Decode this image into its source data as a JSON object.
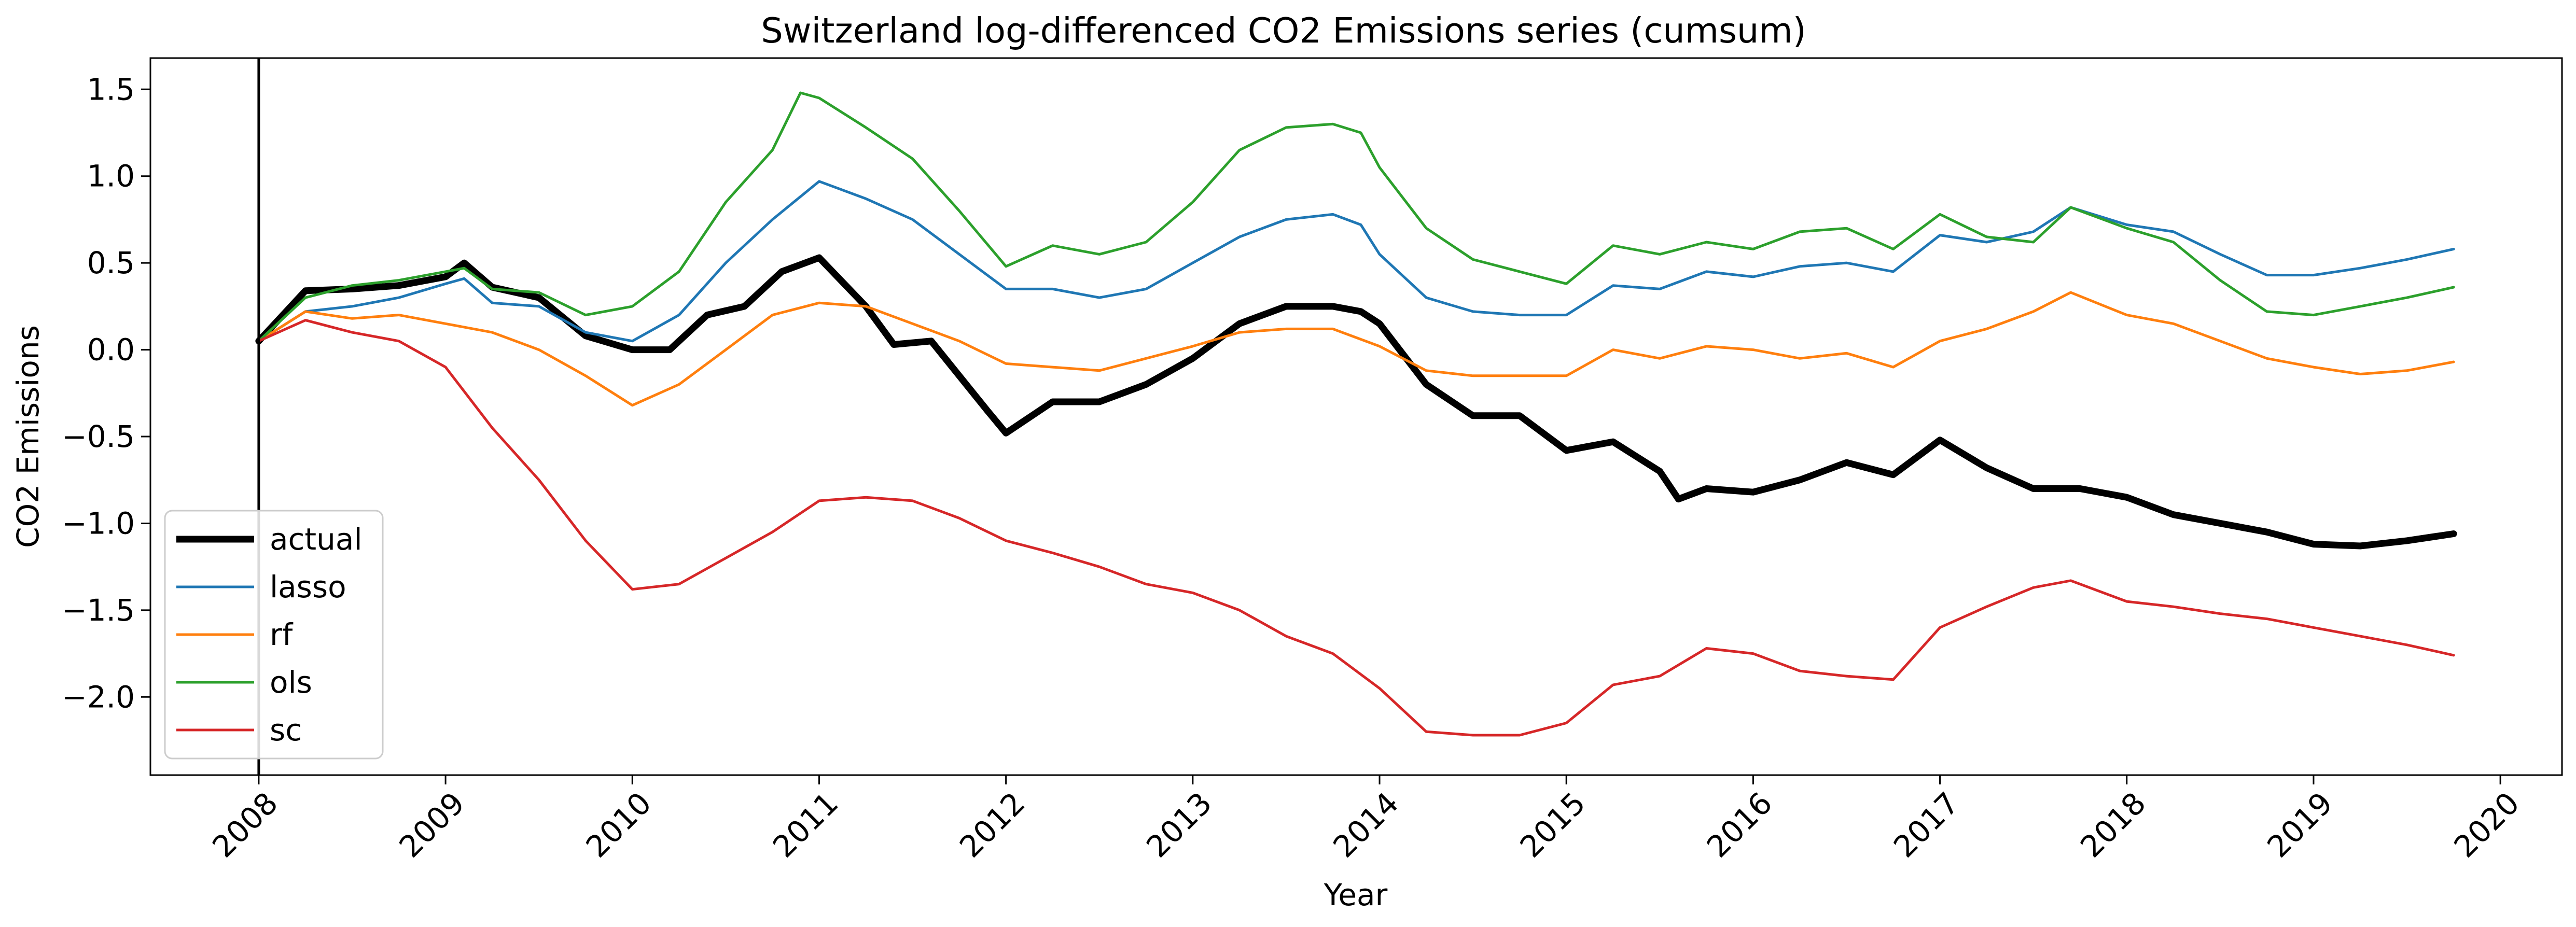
{
  "chart_data": {
    "type": "line",
    "title": "Switzerland log-differenced CO2 Emissions series (cumsum)",
    "xlabel": "Year",
    "ylabel": "CO2 Emissions",
    "xlim": [
      2007.42,
      2020.33
    ],
    "ylim": [
      -2.45,
      1.68
    ],
    "x_ticks": [
      2008,
      2009,
      2010,
      2011,
      2012,
      2013,
      2014,
      2015,
      2016,
      2017,
      2018,
      2019,
      2020
    ],
    "x_tick_labels": [
      "2008",
      "2009",
      "2010",
      "2011",
      "2012",
      "2013",
      "2014",
      "2015",
      "2016",
      "2017",
      "2018",
      "2019",
      "2020"
    ],
    "y_ticks": [
      -2.0,
      -1.5,
      -1.0,
      -0.5,
      0.0,
      0.5,
      1.0,
      1.5
    ],
    "y_tick_labels": [
      "−2.0",
      "−1.5",
      "−1.0",
      "−0.5",
      "0.0",
      "0.5",
      "1.0",
      "1.5"
    ],
    "vline_x": 2008,
    "grid": false,
    "legend_position": "lower-left",
    "series": [
      {
        "name": "actual",
        "color": "#000000",
        "points": [
          [
            2008.0,
            0.05
          ],
          [
            2008.25,
            0.34
          ],
          [
            2008.5,
            0.35
          ],
          [
            2008.75,
            0.37
          ],
          [
            2009.0,
            0.42
          ],
          [
            2009.1,
            0.5
          ],
          [
            2009.25,
            0.36
          ],
          [
            2009.5,
            0.3
          ],
          [
            2009.75,
            0.08
          ],
          [
            2010.0,
            0.0
          ],
          [
            2010.2,
            0.0
          ],
          [
            2010.4,
            0.2
          ],
          [
            2010.6,
            0.25
          ],
          [
            2010.8,
            0.45
          ],
          [
            2011.0,
            0.53
          ],
          [
            2011.25,
            0.25
          ],
          [
            2011.4,
            0.03
          ],
          [
            2011.6,
            0.05
          ],
          [
            2011.75,
            -0.15
          ],
          [
            2011.9,
            -0.35
          ],
          [
            2012.0,
            -0.48
          ],
          [
            2012.25,
            -0.3
          ],
          [
            2012.5,
            -0.3
          ],
          [
            2012.75,
            -0.2
          ],
          [
            2013.0,
            -0.05
          ],
          [
            2013.25,
            0.15
          ],
          [
            2013.5,
            0.25
          ],
          [
            2013.75,
            0.25
          ],
          [
            2013.9,
            0.22
          ],
          [
            2014.0,
            0.15
          ],
          [
            2014.25,
            -0.2
          ],
          [
            2014.5,
            -0.38
          ],
          [
            2014.75,
            -0.38
          ],
          [
            2015.0,
            -0.58
          ],
          [
            2015.25,
            -0.53
          ],
          [
            2015.5,
            -0.7
          ],
          [
            2015.6,
            -0.86
          ],
          [
            2015.75,
            -0.8
          ],
          [
            2016.0,
            -0.82
          ],
          [
            2016.25,
            -0.75
          ],
          [
            2016.5,
            -0.65
          ],
          [
            2016.75,
            -0.72
          ],
          [
            2017.0,
            -0.52
          ],
          [
            2017.25,
            -0.68
          ],
          [
            2017.5,
            -0.8
          ],
          [
            2017.75,
            -0.8
          ],
          [
            2018.0,
            -0.85
          ],
          [
            2018.25,
            -0.95
          ],
          [
            2018.5,
            -1.0
          ],
          [
            2018.75,
            -1.05
          ],
          [
            2019.0,
            -1.12
          ],
          [
            2019.25,
            -1.13
          ],
          [
            2019.5,
            -1.1
          ],
          [
            2019.75,
            -1.06
          ]
        ]
      },
      {
        "name": "lasso",
        "color": "#1f77b4",
        "points": [
          [
            2008.0,
            0.05
          ],
          [
            2008.25,
            0.22
          ],
          [
            2008.5,
            0.25
          ],
          [
            2008.75,
            0.3
          ],
          [
            2009.0,
            0.38
          ],
          [
            2009.1,
            0.41
          ],
          [
            2009.25,
            0.27
          ],
          [
            2009.5,
            0.25
          ],
          [
            2009.75,
            0.1
          ],
          [
            2010.0,
            0.05
          ],
          [
            2010.25,
            0.2
          ],
          [
            2010.5,
            0.5
          ],
          [
            2010.75,
            0.75
          ],
          [
            2011.0,
            0.97
          ],
          [
            2011.25,
            0.87
          ],
          [
            2011.5,
            0.75
          ],
          [
            2011.75,
            0.55
          ],
          [
            2012.0,
            0.35
          ],
          [
            2012.25,
            0.35
          ],
          [
            2012.5,
            0.3
          ],
          [
            2012.75,
            0.35
          ],
          [
            2013.0,
            0.5
          ],
          [
            2013.25,
            0.65
          ],
          [
            2013.5,
            0.75
          ],
          [
            2013.75,
            0.78
          ],
          [
            2013.9,
            0.72
          ],
          [
            2014.0,
            0.55
          ],
          [
            2014.25,
            0.3
          ],
          [
            2014.5,
            0.22
          ],
          [
            2014.75,
            0.2
          ],
          [
            2015.0,
            0.2
          ],
          [
            2015.25,
            0.37
          ],
          [
            2015.5,
            0.35
          ],
          [
            2015.75,
            0.45
          ],
          [
            2016.0,
            0.42
          ],
          [
            2016.25,
            0.48
          ],
          [
            2016.5,
            0.5
          ],
          [
            2016.75,
            0.45
          ],
          [
            2017.0,
            0.66
          ],
          [
            2017.25,
            0.62
          ],
          [
            2017.5,
            0.68
          ],
          [
            2017.7,
            0.82
          ],
          [
            2018.0,
            0.72
          ],
          [
            2018.25,
            0.68
          ],
          [
            2018.5,
            0.55
          ],
          [
            2018.75,
            0.43
          ],
          [
            2019.0,
            0.43
          ],
          [
            2019.25,
            0.47
          ],
          [
            2019.5,
            0.52
          ],
          [
            2019.75,
            0.58
          ]
        ]
      },
      {
        "name": "rf",
        "color": "#ff7f0e",
        "points": [
          [
            2008.0,
            0.05
          ],
          [
            2008.25,
            0.22
          ],
          [
            2008.5,
            0.18
          ],
          [
            2008.75,
            0.2
          ],
          [
            2009.0,
            0.15
          ],
          [
            2009.25,
            0.1
          ],
          [
            2009.5,
            0.0
          ],
          [
            2009.75,
            -0.15
          ],
          [
            2010.0,
            -0.32
          ],
          [
            2010.25,
            -0.2
          ],
          [
            2010.5,
            0.0
          ],
          [
            2010.75,
            0.2
          ],
          [
            2011.0,
            0.27
          ],
          [
            2011.25,
            0.25
          ],
          [
            2011.5,
            0.15
          ],
          [
            2011.75,
            0.05
          ],
          [
            2012.0,
            -0.08
          ],
          [
            2012.25,
            -0.1
          ],
          [
            2012.5,
            -0.12
          ],
          [
            2012.75,
            -0.05
          ],
          [
            2013.0,
            0.02
          ],
          [
            2013.25,
            0.1
          ],
          [
            2013.5,
            0.12
          ],
          [
            2013.75,
            0.12
          ],
          [
            2014.0,
            0.02
          ],
          [
            2014.25,
            -0.12
          ],
          [
            2014.5,
            -0.15
          ],
          [
            2014.75,
            -0.15
          ],
          [
            2015.0,
            -0.15
          ],
          [
            2015.25,
            0.0
          ],
          [
            2015.5,
            -0.05
          ],
          [
            2015.75,
            0.02
          ],
          [
            2016.0,
            0.0
          ],
          [
            2016.25,
            -0.05
          ],
          [
            2016.5,
            -0.02
          ],
          [
            2016.75,
            -0.1
          ],
          [
            2017.0,
            0.05
          ],
          [
            2017.25,
            0.12
          ],
          [
            2017.5,
            0.22
          ],
          [
            2017.7,
            0.33
          ],
          [
            2018.0,
            0.2
          ],
          [
            2018.25,
            0.15
          ],
          [
            2018.5,
            0.05
          ],
          [
            2018.75,
            -0.05
          ],
          [
            2019.0,
            -0.1
          ],
          [
            2019.25,
            -0.14
          ],
          [
            2019.5,
            -0.12
          ],
          [
            2019.75,
            -0.07
          ]
        ]
      },
      {
        "name": "ols",
        "color": "#2ca02c",
        "points": [
          [
            2008.0,
            0.05
          ],
          [
            2008.25,
            0.3
          ],
          [
            2008.5,
            0.37
          ],
          [
            2008.75,
            0.4
          ],
          [
            2009.0,
            0.45
          ],
          [
            2009.1,
            0.47
          ],
          [
            2009.25,
            0.35
          ],
          [
            2009.5,
            0.33
          ],
          [
            2009.75,
            0.2
          ],
          [
            2010.0,
            0.25
          ],
          [
            2010.25,
            0.45
          ],
          [
            2010.5,
            0.85
          ],
          [
            2010.75,
            1.15
          ],
          [
            2010.9,
            1.48
          ],
          [
            2011.0,
            1.45
          ],
          [
            2011.25,
            1.28
          ],
          [
            2011.5,
            1.1
          ],
          [
            2011.75,
            0.8
          ],
          [
            2012.0,
            0.48
          ],
          [
            2012.25,
            0.6
          ],
          [
            2012.5,
            0.55
          ],
          [
            2012.75,
            0.62
          ],
          [
            2013.0,
            0.85
          ],
          [
            2013.25,
            1.15
          ],
          [
            2013.5,
            1.28
          ],
          [
            2013.75,
            1.3
          ],
          [
            2013.9,
            1.25
          ],
          [
            2014.0,
            1.05
          ],
          [
            2014.25,
            0.7
          ],
          [
            2014.5,
            0.52
          ],
          [
            2014.75,
            0.45
          ],
          [
            2015.0,
            0.38
          ],
          [
            2015.25,
            0.6
          ],
          [
            2015.5,
            0.55
          ],
          [
            2015.75,
            0.62
          ],
          [
            2016.0,
            0.58
          ],
          [
            2016.25,
            0.68
          ],
          [
            2016.5,
            0.7
          ],
          [
            2016.75,
            0.58
          ],
          [
            2017.0,
            0.78
          ],
          [
            2017.25,
            0.65
          ],
          [
            2017.5,
            0.62
          ],
          [
            2017.7,
            0.82
          ],
          [
            2018.0,
            0.7
          ],
          [
            2018.25,
            0.62
          ],
          [
            2018.5,
            0.4
          ],
          [
            2018.75,
            0.22
          ],
          [
            2019.0,
            0.2
          ],
          [
            2019.25,
            0.25
          ],
          [
            2019.5,
            0.3
          ],
          [
            2019.75,
            0.36
          ]
        ]
      },
      {
        "name": "sc",
        "color": "#d62728",
        "points": [
          [
            2008.0,
            0.05
          ],
          [
            2008.25,
            0.17
          ],
          [
            2008.5,
            0.1
          ],
          [
            2008.75,
            0.05
          ],
          [
            2009.0,
            -0.1
          ],
          [
            2009.25,
            -0.45
          ],
          [
            2009.5,
            -0.75
          ],
          [
            2009.75,
            -1.1
          ],
          [
            2010.0,
            -1.38
          ],
          [
            2010.25,
            -1.35
          ],
          [
            2010.5,
            -1.2
          ],
          [
            2010.75,
            -1.05
          ],
          [
            2011.0,
            -0.87
          ],
          [
            2011.25,
            -0.85
          ],
          [
            2011.5,
            -0.87
          ],
          [
            2011.75,
            -0.97
          ],
          [
            2012.0,
            -1.1
          ],
          [
            2012.25,
            -1.17
          ],
          [
            2012.5,
            -1.25
          ],
          [
            2012.75,
            -1.35
          ],
          [
            2013.0,
            -1.4
          ],
          [
            2013.25,
            -1.5
          ],
          [
            2013.5,
            -1.65
          ],
          [
            2013.75,
            -1.75
          ],
          [
            2014.0,
            -1.95
          ],
          [
            2014.25,
            -2.2
          ],
          [
            2014.5,
            -2.22
          ],
          [
            2014.75,
            -2.22
          ],
          [
            2015.0,
            -2.15
          ],
          [
            2015.25,
            -1.93
          ],
          [
            2015.5,
            -1.88
          ],
          [
            2015.75,
            -1.72
          ],
          [
            2016.0,
            -1.75
          ],
          [
            2016.25,
            -1.85
          ],
          [
            2016.5,
            -1.88
          ],
          [
            2016.75,
            -1.9
          ],
          [
            2017.0,
            -1.6
          ],
          [
            2017.25,
            -1.48
          ],
          [
            2017.5,
            -1.37
          ],
          [
            2017.7,
            -1.33
          ],
          [
            2018.0,
            -1.45
          ],
          [
            2018.25,
            -1.48
          ],
          [
            2018.5,
            -1.52
          ],
          [
            2018.75,
            -1.55
          ],
          [
            2019.0,
            -1.6
          ],
          [
            2019.25,
            -1.65
          ],
          [
            2019.5,
            -1.7
          ],
          [
            2019.75,
            -1.76
          ]
        ]
      }
    ]
  }
}
